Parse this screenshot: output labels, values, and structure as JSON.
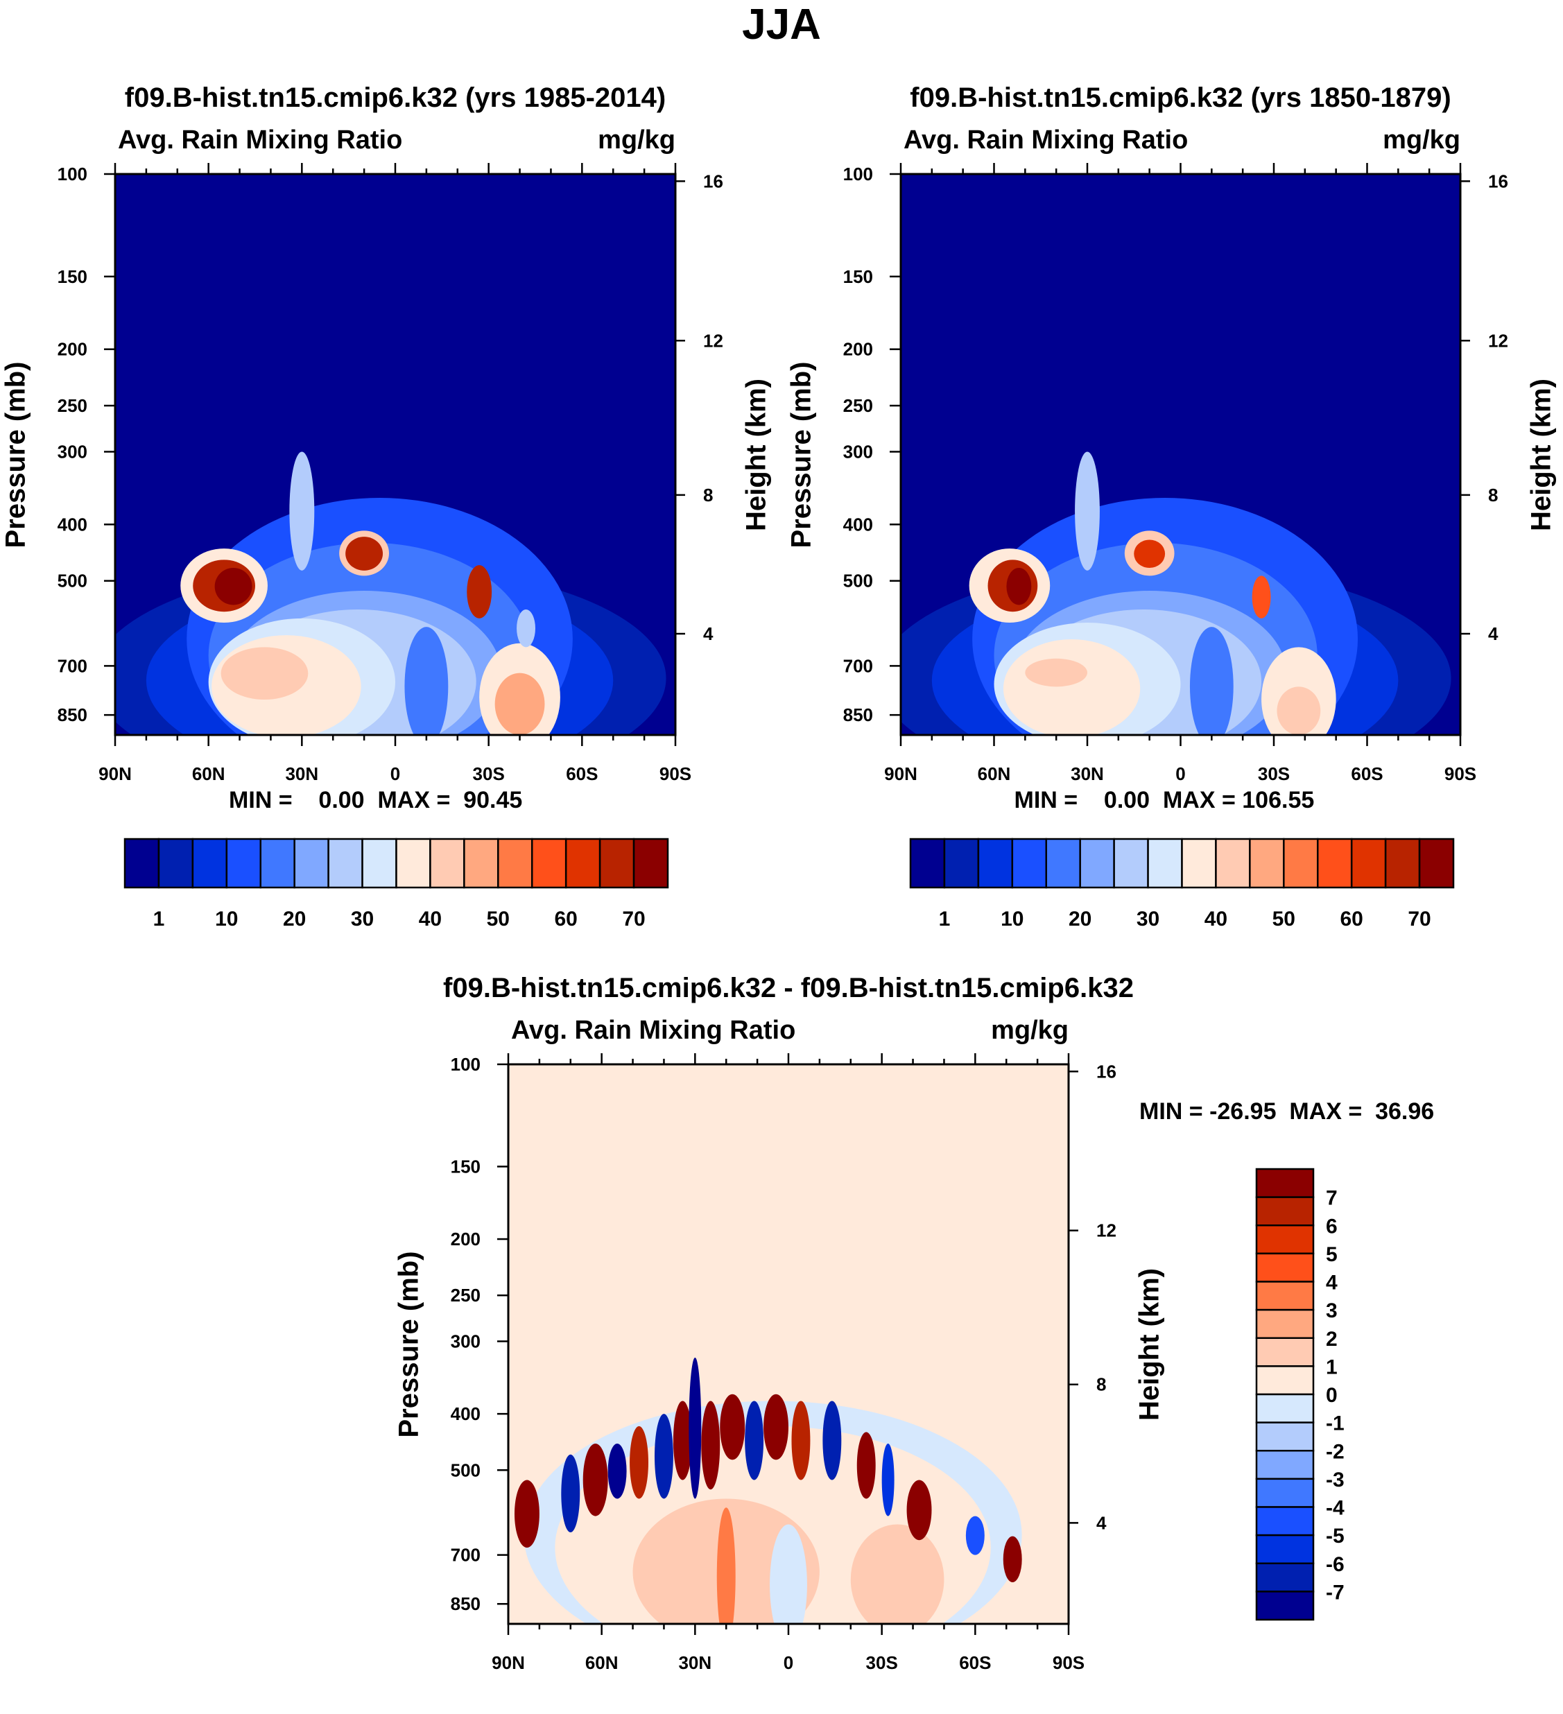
{
  "main_title": "JJA",
  "colors": {
    "abs": [
      "#000090",
      "#0020b0",
      "#0033e0",
      "#1a50ff",
      "#4078ff",
      "#80a8ff",
      "#b3ccfc",
      "#d6e8fd",
      "#ffeadb",
      "#ffcbb3",
      "#ffa880",
      "#ff7a45",
      "#ff501a",
      "#e03300",
      "#b82300",
      "#8b0000"
    ]
  },
  "chart_data": [
    {
      "type": "heatmap",
      "title": "f09.B-hist.tn15.cmip6.k32 (yrs 1985-2014)",
      "left_string": "Avg. Rain Mixing Ratio",
      "right_string": "mg/kg",
      "ylabel": "Pressure (mb)",
      "y2label": "Height (km)",
      "min_max": "MIN =    0.00  MAX =  90.45",
      "xlim": [
        90,
        -90
      ],
      "ylim": [
        100,
        920
      ],
      "xticks": [
        {
          "v": 90,
          "l": "90N"
        },
        {
          "v": 60,
          "l": "60N"
        },
        {
          "v": 30,
          "l": "30N"
        },
        {
          "v": 0,
          "l": "0"
        },
        {
          "v": -30,
          "l": "30S"
        },
        {
          "v": -60,
          "l": "60S"
        },
        {
          "v": -90,
          "l": "90S"
        }
      ],
      "yticks": [
        "100",
        "150",
        "200",
        "250",
        "300",
        "400",
        "500",
        "700",
        "850"
      ],
      "y2ticks": [
        "16",
        "12",
        "8",
        "4"
      ],
      "colorbar": {
        "orientation": "horizontal",
        "labels": [
          "1",
          "10",
          "20",
          "30",
          "40",
          "50",
          "60",
          "70"
        ]
      },
      "background_level": 0,
      "features": [
        {
          "lat": 5,
          "dlat": 92,
          "p_top": 470,
          "p_bot": 1150,
          "level": 1
        },
        {
          "lat": 5,
          "dlat": 75,
          "p_top": 500,
          "p_bot": 1100,
          "level": 2
        },
        {
          "lat": 5,
          "dlat": 62,
          "p_top": 360,
          "p_bot": 1100,
          "level": 3
        },
        {
          "lat": 8,
          "dlat": 52,
          "p_top": 430,
          "p_bot": 1050,
          "level": 4
        },
        {
          "lat": 10,
          "dlat": 44,
          "p_top": 520,
          "p_bot": 1000,
          "level": 5
        },
        {
          "lat": 12,
          "dlat": 38,
          "p_top": 560,
          "p_bot": 990,
          "level": 6
        },
        {
          "lat": 30,
          "dlat": 30,
          "p_top": 580,
          "p_bot": 960,
          "level": 7
        },
        {
          "lat": 35,
          "dlat": 24,
          "p_top": 620,
          "p_bot": 930,
          "level": 8
        },
        {
          "lat": 42,
          "dlat": 14,
          "p_top": 650,
          "p_bot": 800,
          "level": 9
        },
        {
          "lat": -40,
          "dlat": 13,
          "p_top": 640,
          "p_bot": 980,
          "level": 8
        },
        {
          "lat": -40,
          "dlat": 8,
          "p_top": 720,
          "p_bot": 920,
          "level": 10
        },
        {
          "lat": -10,
          "dlat": 7,
          "p_top": 600,
          "p_bot": 960,
          "level": 4
        },
        {
          "lat": 30,
          "dlat": 4,
          "p_top": 300,
          "p_bot": 480,
          "level": 6
        },
        {
          "lat": 55,
          "dlat": 14,
          "p_top": 440,
          "p_bot": 590,
          "level": 8
        },
        {
          "lat": 55,
          "dlat": 10,
          "p_top": 460,
          "p_bot": 565,
          "level": 14
        },
        {
          "lat": 52,
          "dlat": 6,
          "p_top": 475,
          "p_bot": 550,
          "level": 15
        },
        {
          "lat": 10,
          "dlat": 8,
          "p_top": 410,
          "p_bot": 490,
          "level": 9
        },
        {
          "lat": 10,
          "dlat": 6,
          "p_top": 420,
          "p_bot": 480,
          "level": 14
        },
        {
          "lat": -27,
          "dlat": 4,
          "p_top": 470,
          "p_bot": 580,
          "level": 14
        },
        {
          "lat": -42,
          "dlat": 3,
          "p_top": 560,
          "p_bot": 650,
          "level": 6
        }
      ]
    },
    {
      "type": "heatmap",
      "title": "f09.B-hist.tn15.cmip6.k32 (yrs 1850-1879)",
      "left_string": "Avg. Rain Mixing Ratio",
      "right_string": "mg/kg",
      "ylabel": "Pressure (mb)",
      "y2label": "Height (km)",
      "min_max": "MIN =    0.00  MAX = 106.55",
      "xlim": [
        90,
        -90
      ],
      "ylim": [
        100,
        920
      ],
      "xticks": [
        {
          "v": 90,
          "l": "90N"
        },
        {
          "v": 60,
          "l": "60N"
        },
        {
          "v": 30,
          "l": "30N"
        },
        {
          "v": 0,
          "l": "0"
        },
        {
          "v": -30,
          "l": "30S"
        },
        {
          "v": -60,
          "l": "60S"
        },
        {
          "v": -90,
          "l": "90S"
        }
      ],
      "yticks": [
        "100",
        "150",
        "200",
        "250",
        "300",
        "400",
        "500",
        "700",
        "850"
      ],
      "y2ticks": [
        "16",
        "12",
        "8",
        "4"
      ],
      "colorbar": {
        "orientation": "horizontal",
        "labels": [
          "1",
          "10",
          "20",
          "30",
          "40",
          "50",
          "60",
          "70"
        ]
      },
      "background_level": 0,
      "features": [
        {
          "lat": 5,
          "dlat": 92,
          "p_top": 470,
          "p_bot": 1150,
          "level": 1
        },
        {
          "lat": 5,
          "dlat": 75,
          "p_top": 500,
          "p_bot": 1100,
          "level": 2
        },
        {
          "lat": 5,
          "dlat": 62,
          "p_top": 360,
          "p_bot": 1100,
          "level": 3
        },
        {
          "lat": 8,
          "dlat": 52,
          "p_top": 430,
          "p_bot": 1050,
          "level": 4
        },
        {
          "lat": 10,
          "dlat": 44,
          "p_top": 520,
          "p_bot": 1000,
          "level": 5
        },
        {
          "lat": 12,
          "dlat": 38,
          "p_top": 560,
          "p_bot": 990,
          "level": 6
        },
        {
          "lat": 30,
          "dlat": 30,
          "p_top": 590,
          "p_bot": 960,
          "level": 7
        },
        {
          "lat": 35,
          "dlat": 22,
          "p_top": 630,
          "p_bot": 930,
          "level": 8
        },
        {
          "lat": 40,
          "dlat": 10,
          "p_top": 680,
          "p_bot": 760,
          "level": 9
        },
        {
          "lat": -38,
          "dlat": 12,
          "p_top": 650,
          "p_bot": 980,
          "level": 8
        },
        {
          "lat": -38,
          "dlat": 7,
          "p_top": 760,
          "p_bot": 920,
          "level": 9
        },
        {
          "lat": -10,
          "dlat": 7,
          "p_top": 600,
          "p_bot": 960,
          "level": 4
        },
        {
          "lat": 30,
          "dlat": 4,
          "p_top": 300,
          "p_bot": 480,
          "level": 6
        },
        {
          "lat": 55,
          "dlat": 13,
          "p_top": 440,
          "p_bot": 590,
          "level": 8
        },
        {
          "lat": 54,
          "dlat": 8,
          "p_top": 460,
          "p_bot": 565,
          "level": 14
        },
        {
          "lat": 52,
          "dlat": 4,
          "p_top": 475,
          "p_bot": 550,
          "level": 15
        },
        {
          "lat": 10,
          "dlat": 8,
          "p_top": 410,
          "p_bot": 490,
          "level": 9
        },
        {
          "lat": 10,
          "dlat": 5,
          "p_top": 425,
          "p_bot": 475,
          "level": 13
        },
        {
          "lat": -26,
          "dlat": 3,
          "p_top": 490,
          "p_bot": 580,
          "level": 12
        }
      ]
    },
    {
      "type": "heatmap",
      "title": "f09.B-hist.tn15.cmip6.k32 - f09.B-hist.tn15.cmip6.k32",
      "left_string": "Avg. Rain Mixing Ratio",
      "right_string": "mg/kg",
      "ylabel": "Pressure (mb)",
      "y2label": "Height (km)",
      "min_max": "MIN = -26.95  MAX =  36.96",
      "xlim": [
        90,
        -90
      ],
      "ylim": [
        100,
        920
      ],
      "xticks": [
        {
          "v": 90,
          "l": "90N"
        },
        {
          "v": 60,
          "l": "60N"
        },
        {
          "v": 30,
          "l": "30N"
        },
        {
          "v": 0,
          "l": "0"
        },
        {
          "v": -30,
          "l": "30S"
        },
        {
          "v": -60,
          "l": "60S"
        },
        {
          "v": -90,
          "l": "90S"
        }
      ],
      "yticks": [
        "100",
        "150",
        "200",
        "250",
        "300",
        "400",
        "500",
        "700",
        "850"
      ],
      "y2ticks": [
        "16",
        "12",
        "8",
        "4"
      ],
      "colorbar": {
        "orientation": "vertical",
        "labels": [
          "7",
          "6",
          "5",
          "4",
          "3",
          "2",
          "1",
          "0",
          "-1",
          "-2",
          "-3",
          "-4",
          "-5",
          "-6",
          "-7"
        ]
      },
      "background_level": 8,
      "features": [
        {
          "lat": 5,
          "dlat": 80,
          "p_top": 380,
          "p_bot": 1100,
          "level": 7
        },
        {
          "lat": 5,
          "dlat": 70,
          "p_top": 420,
          "p_bot": 1100,
          "level": 8
        },
        {
          "lat": 20,
          "dlat": 30,
          "p_top": 560,
          "p_bot": 1000,
          "level": 9
        },
        {
          "lat": -35,
          "dlat": 15,
          "p_top": 620,
          "p_bot": 960,
          "level": 9
        },
        {
          "lat": 0,
          "dlat": 6,
          "p_top": 620,
          "p_bot": 1000,
          "level": 7
        },
        {
          "lat": 20,
          "dlat": 3,
          "p_top": 580,
          "p_bot": 1000,
          "level": 11
        },
        {
          "lat": 84,
          "dlat": 4,
          "p_top": 520,
          "p_bot": 680,
          "level": 15
        },
        {
          "lat": 70,
          "dlat": 3,
          "p_top": 470,
          "p_bot": 640,
          "level": 1
        },
        {
          "lat": 62,
          "dlat": 4,
          "p_top": 450,
          "p_bot": 600,
          "level": 15
        },
        {
          "lat": 55,
          "dlat": 3,
          "p_top": 450,
          "p_bot": 560,
          "level": 0
        },
        {
          "lat": 48,
          "dlat": 3,
          "p_top": 420,
          "p_bot": 560,
          "level": 14
        },
        {
          "lat": 40,
          "dlat": 3,
          "p_top": 400,
          "p_bot": 560,
          "level": 1
        },
        {
          "lat": 34,
          "dlat": 3,
          "p_top": 380,
          "p_bot": 520,
          "level": 15
        },
        {
          "lat": 30,
          "dlat": 2,
          "p_top": 320,
          "p_bot": 560,
          "level": 0
        },
        {
          "lat": 25,
          "dlat": 3,
          "p_top": 380,
          "p_bot": 540,
          "level": 15
        },
        {
          "lat": 18,
          "dlat": 4,
          "p_top": 370,
          "p_bot": 480,
          "level": 15
        },
        {
          "lat": 11,
          "dlat": 3,
          "p_top": 380,
          "p_bot": 520,
          "level": 1
        },
        {
          "lat": 4,
          "dlat": 4,
          "p_top": 370,
          "p_bot": 480,
          "level": 15
        },
        {
          "lat": -4,
          "dlat": 3,
          "p_top": 380,
          "p_bot": 520,
          "level": 14
        },
        {
          "lat": -14,
          "dlat": 3,
          "p_top": 380,
          "p_bot": 520,
          "level": 1
        },
        {
          "lat": -25,
          "dlat": 3,
          "p_top": 430,
          "p_bot": 560,
          "level": 15
        },
        {
          "lat": -32,
          "dlat": 2,
          "p_top": 450,
          "p_bot": 600,
          "level": 2
        },
        {
          "lat": -42,
          "dlat": 4,
          "p_top": 520,
          "p_bot": 660,
          "level": 15
        },
        {
          "lat": -60,
          "dlat": 3,
          "p_top": 600,
          "p_bot": 700,
          "level": 3
        },
        {
          "lat": -72,
          "dlat": 3,
          "p_top": 650,
          "p_bot": 780,
          "level": 15
        }
      ]
    }
  ]
}
